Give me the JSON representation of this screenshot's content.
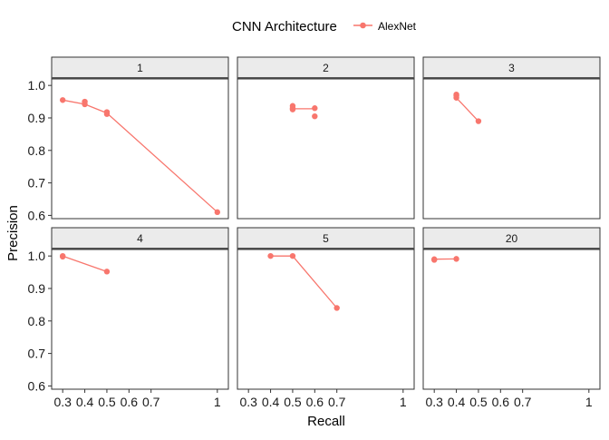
{
  "chart_data": {
    "type": "line",
    "facet_type": "wrap",
    "xlabel": "Recall",
    "ylabel": "Precision",
    "xlim": [
      0.25,
      1.05
    ],
    "ylim": [
      0.59,
      1.02
    ],
    "x_ticks": [
      0.3,
      0.4,
      0.5,
      0.6,
      0.7,
      1
    ],
    "y_ticks": [
      0.6,
      0.7,
      0.8,
      0.9,
      1.0
    ],
    "y_tick_labels": [
      "0.6",
      "0.7",
      "0.8",
      "0.9",
      "1.0"
    ],
    "grid": false,
    "legend": {
      "title": "CNN Architecture",
      "position": "top",
      "entries": [
        {
          "name": "AlexNet",
          "color": "#F8766D"
        }
      ]
    },
    "series_color": "#F8766D",
    "panels": [
      {
        "label": "1",
        "points": [
          [
            0.3,
            0.955
          ],
          [
            0.4,
            0.95
          ],
          [
            0.4,
            0.942
          ],
          [
            0.5,
            0.918
          ],
          [
            0.5,
            0.912
          ],
          [
            1.0,
            0.61
          ]
        ],
        "path": [
          [
            0.3,
            0.955
          ],
          [
            0.4,
            0.942
          ],
          [
            0.5,
            0.915
          ],
          [
            1.0,
            0.61
          ]
        ]
      },
      {
        "label": "2",
        "points": [
          [
            0.5,
            0.937
          ],
          [
            0.5,
            0.93
          ],
          [
            0.5,
            0.926
          ],
          [
            0.6,
            0.93
          ],
          [
            0.6,
            0.905
          ]
        ],
        "path": [
          [
            0.5,
            0.928
          ],
          [
            0.6,
            0.928
          ]
        ]
      },
      {
        "label": "3",
        "points": [
          [
            0.4,
            0.972
          ],
          [
            0.4,
            0.968
          ],
          [
            0.4,
            0.962
          ],
          [
            0.5,
            0.89
          ]
        ],
        "path": [
          [
            0.4,
            0.962
          ],
          [
            0.5,
            0.89
          ]
        ]
      },
      {
        "label": "4",
        "points": [
          [
            0.3,
            1.0
          ],
          [
            0.3,
            0.998
          ],
          [
            0.5,
            0.952
          ]
        ],
        "path": [
          [
            0.3,
            1.0
          ],
          [
            0.5,
            0.952
          ]
        ]
      },
      {
        "label": "5",
        "points": [
          [
            0.4,
            1.0
          ],
          [
            0.5,
            1.0
          ],
          [
            0.7,
            0.84
          ]
        ],
        "path": [
          [
            0.4,
            1.0
          ],
          [
            0.5,
            1.0
          ],
          [
            0.7,
            0.84
          ]
        ]
      },
      {
        "label": "20",
        "points": [
          [
            0.3,
            0.99
          ],
          [
            0.3,
            0.988
          ],
          [
            0.4,
            0.991
          ]
        ],
        "path": [
          [
            0.3,
            0.99
          ],
          [
            0.4,
            0.991
          ]
        ]
      }
    ]
  }
}
